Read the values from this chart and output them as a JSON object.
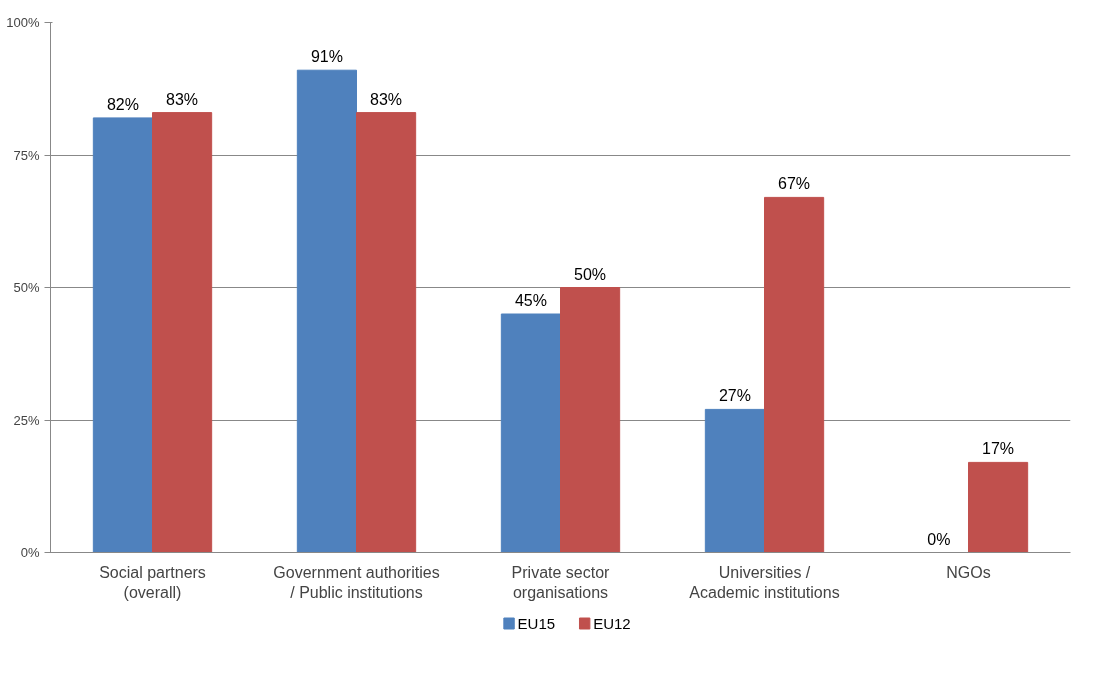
{
  "chart_data": {
    "type": "bar",
    "categories": [
      "Social partners (overall)",
      "Government authorities / Public institutions",
      "Private sector organisations",
      "Universities / Academic institutions",
      "NGOs"
    ],
    "series": [
      {
        "name": "EU15",
        "color": "#4f81bd",
        "values": [
          82,
          91,
          45,
          27,
          0
        ],
        "value_labels": [
          "82%",
          "91%",
          "45%",
          "27%",
          "0%"
        ]
      },
      {
        "name": "EU12",
        "color": "#c0504d",
        "values": [
          83,
          83,
          50,
          67,
          17
        ],
        "value_labels": [
          "83%",
          "83%",
          "50%",
          "67%",
          "17%"
        ]
      }
    ],
    "ylim": [
      0,
      100
    ],
    "yticks": [
      {
        "value": 0,
        "label": "0%"
      },
      {
        "value": 25,
        "label": "25%"
      },
      {
        "value": 50,
        "label": "50%"
      },
      {
        "value": 75,
        "label": "75%"
      },
      {
        "value": 100,
        "label": "100%"
      }
    ],
    "grid": "y",
    "legend": "bottom"
  }
}
